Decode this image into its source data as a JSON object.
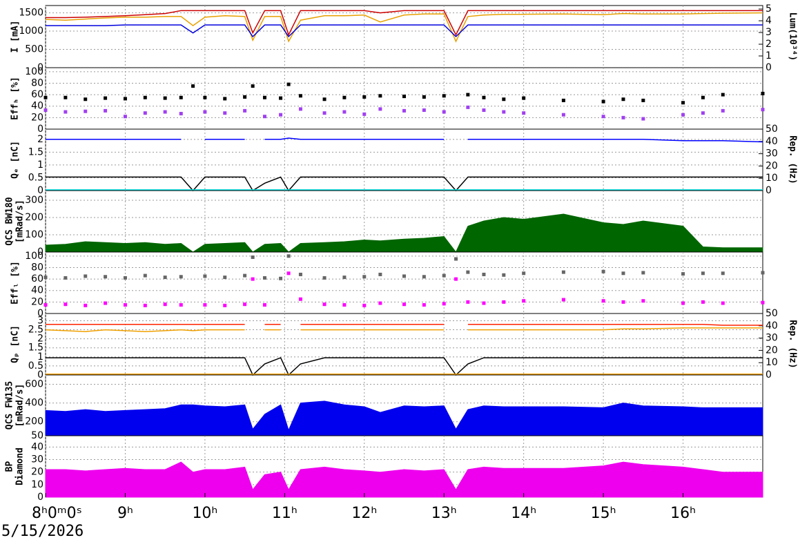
{
  "chart_data": [
    {
      "type": "line",
      "ylabel": "I [mA]",
      "y2label": "Lum(10³⁴)",
      "xlim": [
        8,
        17
      ],
      "ylim": [
        0,
        1700
      ],
      "yticks": [
        0,
        500,
        1000,
        1500
      ],
      "y2lim": [
        0,
        5.3
      ],
      "y2ticks": [
        0,
        1,
        2,
        3,
        4,
        5
      ],
      "grid": true,
      "x": [
        8,
        8.25,
        8.5,
        8.75,
        9,
        9.25,
        9.5,
        9.7,
        9.85,
        10,
        10.25,
        10.5,
        10.6,
        10.75,
        10.95,
        11.05,
        11.2,
        11.5,
        11.75,
        12,
        12.2,
        12.5,
        12.75,
        13,
        13.15,
        13.3,
        13.5,
        13.75,
        14,
        14.5,
        15,
        15.25,
        15.5,
        16,
        16.25,
        16.5,
        17
      ],
      "series": [
        {
          "color": "#cc0000",
          "values": [
            1370,
            1370,
            1380,
            1400,
            1420,
            1450,
            1480,
            1560,
            1560,
            1560,
            1560,
            1560,
            950,
            1560,
            1560,
            900,
            1560,
            1560,
            1560,
            1560,
            1500,
            1560,
            1560,
            1560,
            900,
            1560,
            1560,
            1560,
            1560,
            1560,
            1560,
            1560,
            1560,
            1560,
            1560,
            1560,
            1560
          ]
        },
        {
          "color": "#e8a000",
          "values": [
            1320,
            1300,
            1330,
            1360,
            1380,
            1380,
            1400,
            1400,
            1150,
            1380,
            1420,
            1400,
            750,
            1400,
            1400,
            720,
            1300,
            1420,
            1420,
            1440,
            1250,
            1440,
            1470,
            1470,
            720,
            1400,
            1440,
            1460,
            1460,
            1470,
            1450,
            1480,
            1470,
            1470,
            1480,
            1490,
            1500
          ]
        },
        {
          "color": "#0000dd",
          "values": [
            1150,
            1150,
            1150,
            1150,
            1170,
            1170,
            1170,
            1170,
            950,
            1170,
            1170,
            1170,
            850,
            1170,
            1170,
            850,
            1170,
            1170,
            1170,
            1170,
            1170,
            1170,
            1170,
            1170,
            850,
            1170,
            1170,
            1170,
            1170,
            1170,
            1170,
            1170,
            1170,
            1170,
            1170,
            1170,
            1170
          ]
        }
      ]
    },
    {
      "type": "scatter",
      "ylabel": "Effₕ [%]",
      "xlim": [
        8,
        17
      ],
      "ylim": [
        0,
        107
      ],
      "yticks": [
        0,
        20,
        40,
        60,
        80,
        100
      ],
      "grid": true,
      "x": [
        8,
        8.25,
        8.5,
        8.75,
        9,
        9.25,
        9.5,
        9.7,
        9.85,
        10,
        10.25,
        10.5,
        10.6,
        10.75,
        10.95,
        11.05,
        11.2,
        11.5,
        11.75,
        12,
        12.2,
        12.5,
        12.75,
        13,
        13.15,
        13.3,
        13.5,
        13.75,
        14,
        14.5,
        15,
        15.25,
        15.5,
        16,
        16.25,
        16.5,
        17
      ],
      "series": [
        {
          "color": "#000000",
          "values": [
            55,
            55,
            52,
            54,
            53,
            55,
            54,
            55,
            75,
            55,
            53,
            56,
            75,
            55,
            54,
            78,
            58,
            52,
            55,
            56,
            58,
            57,
            56,
            58,
            null,
            60,
            55,
            52,
            54,
            50,
            48,
            52,
            50,
            46,
            55,
            60,
            62
          ]
        },
        {
          "color": "#a040f0",
          "values": [
            33,
            30,
            31,
            32,
            22,
            28,
            30,
            27,
            null,
            30,
            28,
            32,
            null,
            22,
            25,
            null,
            35,
            28,
            30,
            26,
            35,
            32,
            33,
            30,
            null,
            38,
            33,
            30,
            28,
            25,
            22,
            20,
            18,
            25,
            28,
            32,
            34
          ]
        }
      ]
    },
    {
      "type": "line",
      "ylabel": "Qₑ [nC]",
      "y2label": "Rep. (Hz)",
      "xlim": [
        8,
        17
      ],
      "ylim": [
        0,
        2.4
      ],
      "yticks": [
        0,
        0.5,
        1,
        1.5,
        2
      ],
      "y2lim": [
        0,
        50
      ],
      "y2ticks": [
        0,
        10,
        20,
        30,
        40,
        50
      ],
      "grid": true,
      "x": [
        8,
        8.25,
        8.5,
        8.75,
        9,
        9.25,
        9.5,
        9.7,
        9.85,
        10,
        10.25,
        10.5,
        10.6,
        10.75,
        10.95,
        11.05,
        11.2,
        11.5,
        11.75,
        12,
        12.2,
        12.5,
        12.75,
        13,
        13.15,
        13.3,
        13.5,
        13.75,
        14,
        14.5,
        15,
        15.25,
        15.5,
        16,
        16.25,
        16.5,
        17
      ],
      "series": [
        {
          "color": "#0000ff",
          "values": [
            2,
            2,
            2,
            2,
            2,
            2,
            2,
            2,
            null,
            2,
            2,
            2,
            null,
            2,
            2,
            2.05,
            2,
            2,
            2,
            2,
            2,
            2,
            2,
            2,
            null,
            2,
            2,
            2,
            2,
            2,
            2,
            2,
            2,
            1.95,
            1.95,
            1.95,
            1.9
          ]
        },
        {
          "color": "#000000",
          "axis": "y2",
          "values": [
            11,
            11,
            11,
            11,
            11,
            11,
            11,
            11,
            0,
            11,
            11,
            11,
            0,
            6,
            11,
            0,
            11,
            11,
            11,
            11,
            11,
            11,
            11,
            11,
            0,
            11,
            11,
            11,
            11,
            11,
            11,
            11,
            11,
            11,
            11,
            11,
            11
          ]
        },
        {
          "color": "#00e0e0",
          "values": [
            0.03,
            0.03,
            0.03,
            0.03,
            0.03,
            0.03,
            0.03,
            0.03,
            0.03,
            0.03,
            0.03,
            0.03,
            0.03,
            0.03,
            0.03,
            0.03,
            0.03,
            0.03,
            0.03,
            0.03,
            0.03,
            0.03,
            0.03,
            0.03,
            0.03,
            0.03,
            0.03,
            0.03,
            0.03,
            0.03,
            0.03,
            0.03,
            0.03,
            0.03,
            0.03,
            0.03,
            0.03
          ]
        }
      ]
    },
    {
      "type": "area",
      "ylabel": [
        "QCS BW180",
        "[mRad/s]"
      ],
      "xlim": [
        8,
        17
      ],
      "ylim": [
        0,
        356
      ],
      "yticks": [
        0,
        100,
        200,
        300
      ],
      "grid": true,
      "x": [
        8,
        8.25,
        8.5,
        8.75,
        9,
        9.25,
        9.5,
        9.7,
        9.85,
        10,
        10.25,
        10.5,
        10.6,
        10.75,
        10.95,
        11.05,
        11.2,
        11.5,
        11.75,
        12,
        12.2,
        12.5,
        12.75,
        13,
        13.15,
        13.3,
        13.5,
        13.75,
        14,
        14.5,
        15,
        15.25,
        15.5,
        16,
        16.25,
        16.5,
        17
      ],
      "series": [
        {
          "color": "#006600",
          "values": [
            40,
            45,
            60,
            55,
            50,
            55,
            45,
            50,
            0,
            45,
            50,
            55,
            0,
            45,
            50,
            0,
            50,
            55,
            60,
            70,
            65,
            75,
            80,
            90,
            0,
            150,
            180,
            200,
            190,
            220,
            170,
            160,
            180,
            150,
            30,
            25,
            25
          ]
        }
      ]
    },
    {
      "type": "scatter",
      "ylabel": "Effₗ [%]",
      "xlim": [
        8,
        17
      ],
      "ylim": [
        0,
        107
      ],
      "yticks": [
        0,
        20,
        40,
        60,
        80,
        100
      ],
      "grid": true,
      "x": [
        8,
        8.25,
        8.5,
        8.75,
        9,
        9.25,
        9.5,
        9.7,
        9.85,
        10,
        10.25,
        10.5,
        10.6,
        10.75,
        10.95,
        11.05,
        11.2,
        11.5,
        11.75,
        12,
        12.2,
        12.5,
        12.75,
        13,
        13.15,
        13.3,
        13.5,
        13.75,
        14,
        14.5,
        15,
        15.25,
        15.5,
        16,
        16.25,
        16.5,
        17
      ],
      "series": [
        {
          "color": "#666666",
          "values": [
            63,
            62,
            65,
            64,
            62,
            66,
            63,
            64,
            null,
            65,
            63,
            66,
            98,
            62,
            61,
            100,
            68,
            62,
            63,
            64,
            68,
            65,
            64,
            66,
            95,
            72,
            68,
            67,
            70,
            72,
            73,
            70,
            71,
            69,
            70,
            70,
            71
          ]
        },
        {
          "color": "#ff00ff",
          "values": [
            15,
            16,
            14,
            18,
            15,
            14,
            16,
            15,
            null,
            15,
            14,
            16,
            60,
            15,
            null,
            70,
            25,
            16,
            15,
            14,
            18,
            16,
            15,
            17,
            60,
            20,
            18,
            20,
            22,
            24,
            22,
            20,
            22,
            18,
            20,
            18,
            19
          ]
        }
      ]
    },
    {
      "type": "line",
      "ylabel": "Qₚ [nC]",
      "y2label": "Rep. (Hz)",
      "xlim": [
        8,
        17
      ],
      "ylim": [
        0,
        3.4
      ],
      "yticks": [
        0,
        0.5,
        1,
        1.5,
        2,
        2.5,
        3
      ],
      "y2lim": [
        0,
        50
      ],
      "y2ticks": [
        0,
        10,
        20,
        30,
        40,
        50
      ],
      "grid": true,
      "x": [
        8,
        8.25,
        8.5,
        8.75,
        9,
        9.25,
        9.5,
        9.7,
        9.85,
        10,
        10.25,
        10.5,
        10.6,
        10.75,
        10.95,
        11.05,
        11.2,
        11.5,
        11.75,
        12,
        12.2,
        12.5,
        12.75,
        13,
        13.15,
        13.3,
        13.5,
        13.75,
        14,
        14.5,
        15,
        15.25,
        15.5,
        16,
        16.25,
        16.5,
        17
      ],
      "series": [
        {
          "color": "#ff2000",
          "values": [
            2.8,
            2.8,
            2.8,
            2.8,
            2.8,
            2.8,
            2.8,
            2.8,
            2.8,
            2.8,
            2.8,
            2.8,
            null,
            2.8,
            2.8,
            null,
            2.8,
            2.8,
            2.8,
            2.8,
            2.8,
            2.8,
            2.8,
            2.8,
            null,
            2.8,
            2.8,
            2.8,
            2.8,
            2.8,
            2.8,
            2.8,
            2.8,
            2.8,
            2.8,
            2.75,
            2.75
          ]
        },
        {
          "color": "#f0a000",
          "values": [
            2.5,
            2.45,
            2.4,
            2.5,
            2.45,
            2.4,
            2.45,
            2.5,
            2.45,
            2.5,
            2.5,
            2.5,
            null,
            2.5,
            2.5,
            null,
            2.5,
            2.5,
            2.5,
            2.5,
            2.5,
            2.5,
            2.5,
            2.5,
            null,
            2.5,
            2.5,
            2.5,
            2.5,
            2.5,
            2.5,
            2.55,
            2.55,
            2.6,
            2.6,
            2.6,
            2.6
          ]
        },
        {
          "color": "#000000",
          "axis": "y2",
          "values": [
            14,
            14,
            14,
            14,
            14,
            14,
            14,
            14,
            14,
            14,
            14,
            14,
            0,
            9,
            14,
            0,
            9,
            14,
            14,
            14,
            14,
            14,
            14,
            14,
            0,
            9,
            14,
            14,
            14,
            14,
            14,
            14,
            14,
            14,
            14,
            14,
            14
          ]
        },
        {
          "color": "#f0a000",
          "values": [
            0.05,
            0.05,
            0.05,
            0.05,
            0.05,
            0.05,
            0.05,
            0.05,
            0.05,
            0.05,
            0.05,
            0.05,
            0.05,
            0.05,
            0.05,
            0.05,
            0.05,
            0.05,
            0.05,
            0.05,
            0.05,
            0.05,
            0.05,
            0.05,
            0.05,
            0.05,
            0.05,
            0.05,
            0.05,
            0.05,
            0.05,
            0.05,
            0.05,
            0.05,
            0.05,
            0.05,
            0.05
          ]
        }
      ]
    },
    {
      "type": "area",
      "ylabel": [
        "QCS FW135",
        "[mRad/s]"
      ],
      "xlim": [
        8,
        17
      ],
      "ylim": [
        50,
        700
      ],
      "yticks": [
        50,
        200,
        400,
        600
      ],
      "grid": true,
      "x": [
        8,
        8.25,
        8.5,
        8.75,
        9,
        9.25,
        9.5,
        9.7,
        9.85,
        10,
        10.25,
        10.5,
        10.6,
        10.75,
        10.95,
        11.05,
        11.2,
        11.5,
        11.75,
        12,
        12.2,
        12.5,
        12.75,
        13,
        13.15,
        13.3,
        13.5,
        13.75,
        14,
        14.5,
        15,
        15.25,
        15.5,
        16,
        16.25,
        16.5,
        17
      ],
      "series": [
        {
          "color": "#0000ee",
          "values": [
            320,
            310,
            330,
            310,
            320,
            330,
            340,
            380,
            380,
            370,
            360,
            380,
            120,
            280,
            380,
            110,
            400,
            420,
            380,
            360,
            300,
            370,
            360,
            370,
            120,
            330,
            370,
            360,
            360,
            360,
            350,
            400,
            370,
            360,
            350,
            350,
            350
          ]
        }
      ]
    },
    {
      "type": "area",
      "ylabel": [
        "BP",
        "Diamond"
      ],
      "xlim": [
        8,
        17
      ],
      "ylim": [
        0,
        49
      ],
      "yticks": [
        0,
        10,
        20,
        30,
        40
      ],
      "grid": true,
      "date": "5/15/2026",
      "xticks": [
        {
          "value": 8,
          "label": "8ʰ0ᵐ0ˢ"
        },
        {
          "value": 9,
          "label": "9ʰ"
        },
        {
          "value": 10,
          "label": "10ʰ"
        },
        {
          "value": 11,
          "label": "11ʰ"
        },
        {
          "value": 12,
          "label": "12ʰ"
        },
        {
          "value": 13,
          "label": "13ʰ"
        },
        {
          "value": 14,
          "label": "14ʰ"
        },
        {
          "value": 15,
          "label": "15ʰ"
        },
        {
          "value": 16,
          "label": "16ʰ"
        }
      ],
      "x": [
        8,
        8.25,
        8.5,
        8.75,
        9,
        9.25,
        9.5,
        9.7,
        9.85,
        10,
        10.25,
        10.5,
        10.6,
        10.75,
        10.95,
        11.05,
        11.2,
        11.5,
        11.75,
        12,
        12.2,
        12.5,
        12.75,
        13,
        13.15,
        13.3,
        13.5,
        13.75,
        14,
        14.5,
        15,
        15.25,
        15.5,
        16,
        16.25,
        16.5,
        17
      ],
      "series": [
        {
          "color": "#ee00ee",
          "values": [
            22,
            22,
            21,
            22,
            23,
            22,
            22,
            28,
            20,
            22,
            22,
            24,
            6,
            18,
            20,
            6,
            22,
            24,
            22,
            21,
            20,
            22,
            21,
            22,
            6,
            22,
            24,
            23,
            23,
            23,
            25,
            28,
            26,
            24,
            22,
            20,
            20
          ]
        }
      ]
    }
  ]
}
